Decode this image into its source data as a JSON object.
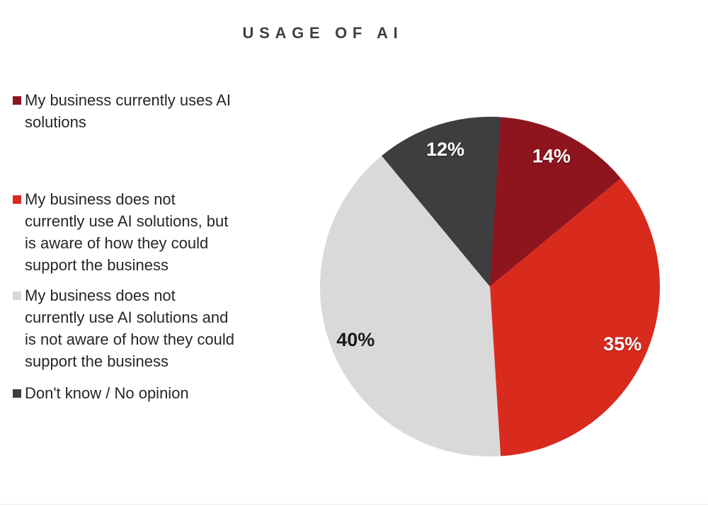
{
  "chart_data": {
    "type": "pie",
    "title": "USAGE OF AI",
    "legend_position": "left",
    "start_angle_deg": 0,
    "direction": "clockwise",
    "data_label_format": "percent",
    "background_color": "#ffffff",
    "slices": [
      {
        "label": "My business currently uses AI solutions",
        "legend_text": "My business currently uses AI\nsolutions",
        "value": 14,
        "display_label": "14%",
        "color": "#8E151E",
        "label_color": "#ffffff"
      },
      {
        "label": "My business does not currently use AI solutions, but is aware of how they could support the business",
        "legend_text": "My business does not\ncurrently use AI solutions, but\nis aware of how they could\nsupport the business",
        "value": 35,
        "display_label": "35%",
        "color": "#D92A1E",
        "label_color": "#ffffff"
      },
      {
        "label": "My business does not currently use AI solutions and is not aware of how they could support the business",
        "legend_text": "My business does not\ncurrently use AI solutions and\nis not aware of how they could\nsupport the business",
        "value": 40,
        "display_label": "40%",
        "color": "#D9D9D9",
        "label_color": "#1a1a1a"
      },
      {
        "label": "Don't know / No opinion",
        "legend_text": "Don't know / No opinion",
        "value": 12,
        "display_label": "12%",
        "color": "#3E3E40",
        "label_color": "#ffffff"
      }
    ]
  }
}
